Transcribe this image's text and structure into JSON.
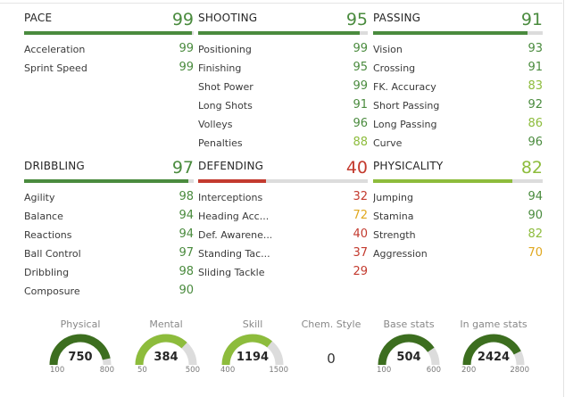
{
  "colors": {
    "high": "#4a8b3e",
    "good": "#8dbc3c",
    "mid": "#e0a81f",
    "low": "#c33a2e",
    "track": "#dcdcdc"
  },
  "categories": [
    {
      "name": "PACE",
      "value": "99",
      "color": "#4a8b3e",
      "fill_pct": 99,
      "rows": [
        {
          "label": "Acceleration",
          "value": "99",
          "color": "#4a8b3e"
        },
        {
          "label": "Sprint Speed",
          "value": "99",
          "color": "#4a8b3e"
        }
      ]
    },
    {
      "name": "SHOOTING",
      "value": "95",
      "color": "#4a8b3e",
      "fill_pct": 95,
      "rows": [
        {
          "label": "Positioning",
          "value": "99",
          "color": "#4a8b3e"
        },
        {
          "label": "Finishing",
          "value": "95",
          "color": "#4a8b3e"
        },
        {
          "label": "Shot Power",
          "value": "99",
          "color": "#4a8b3e"
        },
        {
          "label": "Long Shots",
          "value": "91",
          "color": "#4a8b3e"
        },
        {
          "label": "Volleys",
          "value": "96",
          "color": "#4a8b3e"
        },
        {
          "label": "Penalties",
          "value": "88",
          "color": "#8dbc3c"
        }
      ]
    },
    {
      "name": "PASSING",
      "value": "91",
      "color": "#4a8b3e",
      "fill_pct": 91,
      "rows": [
        {
          "label": "Vision",
          "value": "93",
          "color": "#4a8b3e"
        },
        {
          "label": "Crossing",
          "value": "91",
          "color": "#4a8b3e"
        },
        {
          "label": "FK. Accuracy",
          "value": "83",
          "color": "#8dbc3c"
        },
        {
          "label": "Short Passing",
          "value": "92",
          "color": "#4a8b3e"
        },
        {
          "label": "Long Passing",
          "value": "86",
          "color": "#8dbc3c"
        },
        {
          "label": "Curve",
          "value": "96",
          "color": "#4a8b3e"
        }
      ]
    },
    {
      "name": "DRIBBLING",
      "value": "97",
      "color": "#4a8b3e",
      "fill_pct": 97,
      "rows": [
        {
          "label": "Agility",
          "value": "98",
          "color": "#4a8b3e"
        },
        {
          "label": "Balance",
          "value": "94",
          "color": "#4a8b3e"
        },
        {
          "label": "Reactions",
          "value": "94",
          "color": "#4a8b3e"
        },
        {
          "label": "Ball Control",
          "value": "97",
          "color": "#4a8b3e"
        },
        {
          "label": "Dribbling",
          "value": "98",
          "color": "#4a8b3e"
        },
        {
          "label": "Composure",
          "value": "90",
          "color": "#4a8b3e"
        }
      ]
    },
    {
      "name": "DEFENDING",
      "value": "40",
      "color": "#c33a2e",
      "fill_pct": 40,
      "rows": [
        {
          "label": "Interceptions",
          "value": "32",
          "color": "#c33a2e"
        },
        {
          "label": "Heading Acc...",
          "value": "72",
          "color": "#e0a81f"
        },
        {
          "label": "Def. Awarene...",
          "value": "40",
          "color": "#c33a2e"
        },
        {
          "label": "Standing Tac...",
          "value": "37",
          "color": "#c33a2e"
        },
        {
          "label": "Sliding Tackle",
          "value": "29",
          "color": "#c33a2e"
        }
      ]
    },
    {
      "name": "PHYSICALITY",
      "value": "82",
      "color": "#8dbc3c",
      "fill_pct": 82,
      "rows": [
        {
          "label": "Jumping",
          "value": "94",
          "color": "#4a8b3e"
        },
        {
          "label": "Stamina",
          "value": "90",
          "color": "#4a8b3e"
        },
        {
          "label": "Strength",
          "value": "82",
          "color": "#8dbc3c"
        },
        {
          "label": "Aggression",
          "value": "70",
          "color": "#e0a81f"
        }
      ]
    }
  ],
  "gauges": [
    {
      "label": "Physical",
      "value": "750",
      "min": "100",
      "max": "800",
      "fraction": 0.93,
      "color": "#3c6e1f"
    },
    {
      "label": "Mental",
      "value": "384",
      "min": "50",
      "max": "500",
      "fraction": 0.74,
      "color": "#8dbc3c"
    },
    {
      "label": "Skill",
      "value": "1194",
      "min": "400",
      "max": "1500",
      "fraction": 0.72,
      "color": "#8dbc3c"
    },
    {
      "label": "Chem. Style",
      "value": "0",
      "plain": true
    },
    {
      "label": "Base stats",
      "value": "504",
      "min": "100",
      "max": "600",
      "fraction": 0.81,
      "color": "#3c6e1f"
    },
    {
      "label": "In game stats",
      "value": "2424",
      "min": "200",
      "max": "2800",
      "fraction": 0.85,
      "color": "#3c6e1f"
    }
  ]
}
